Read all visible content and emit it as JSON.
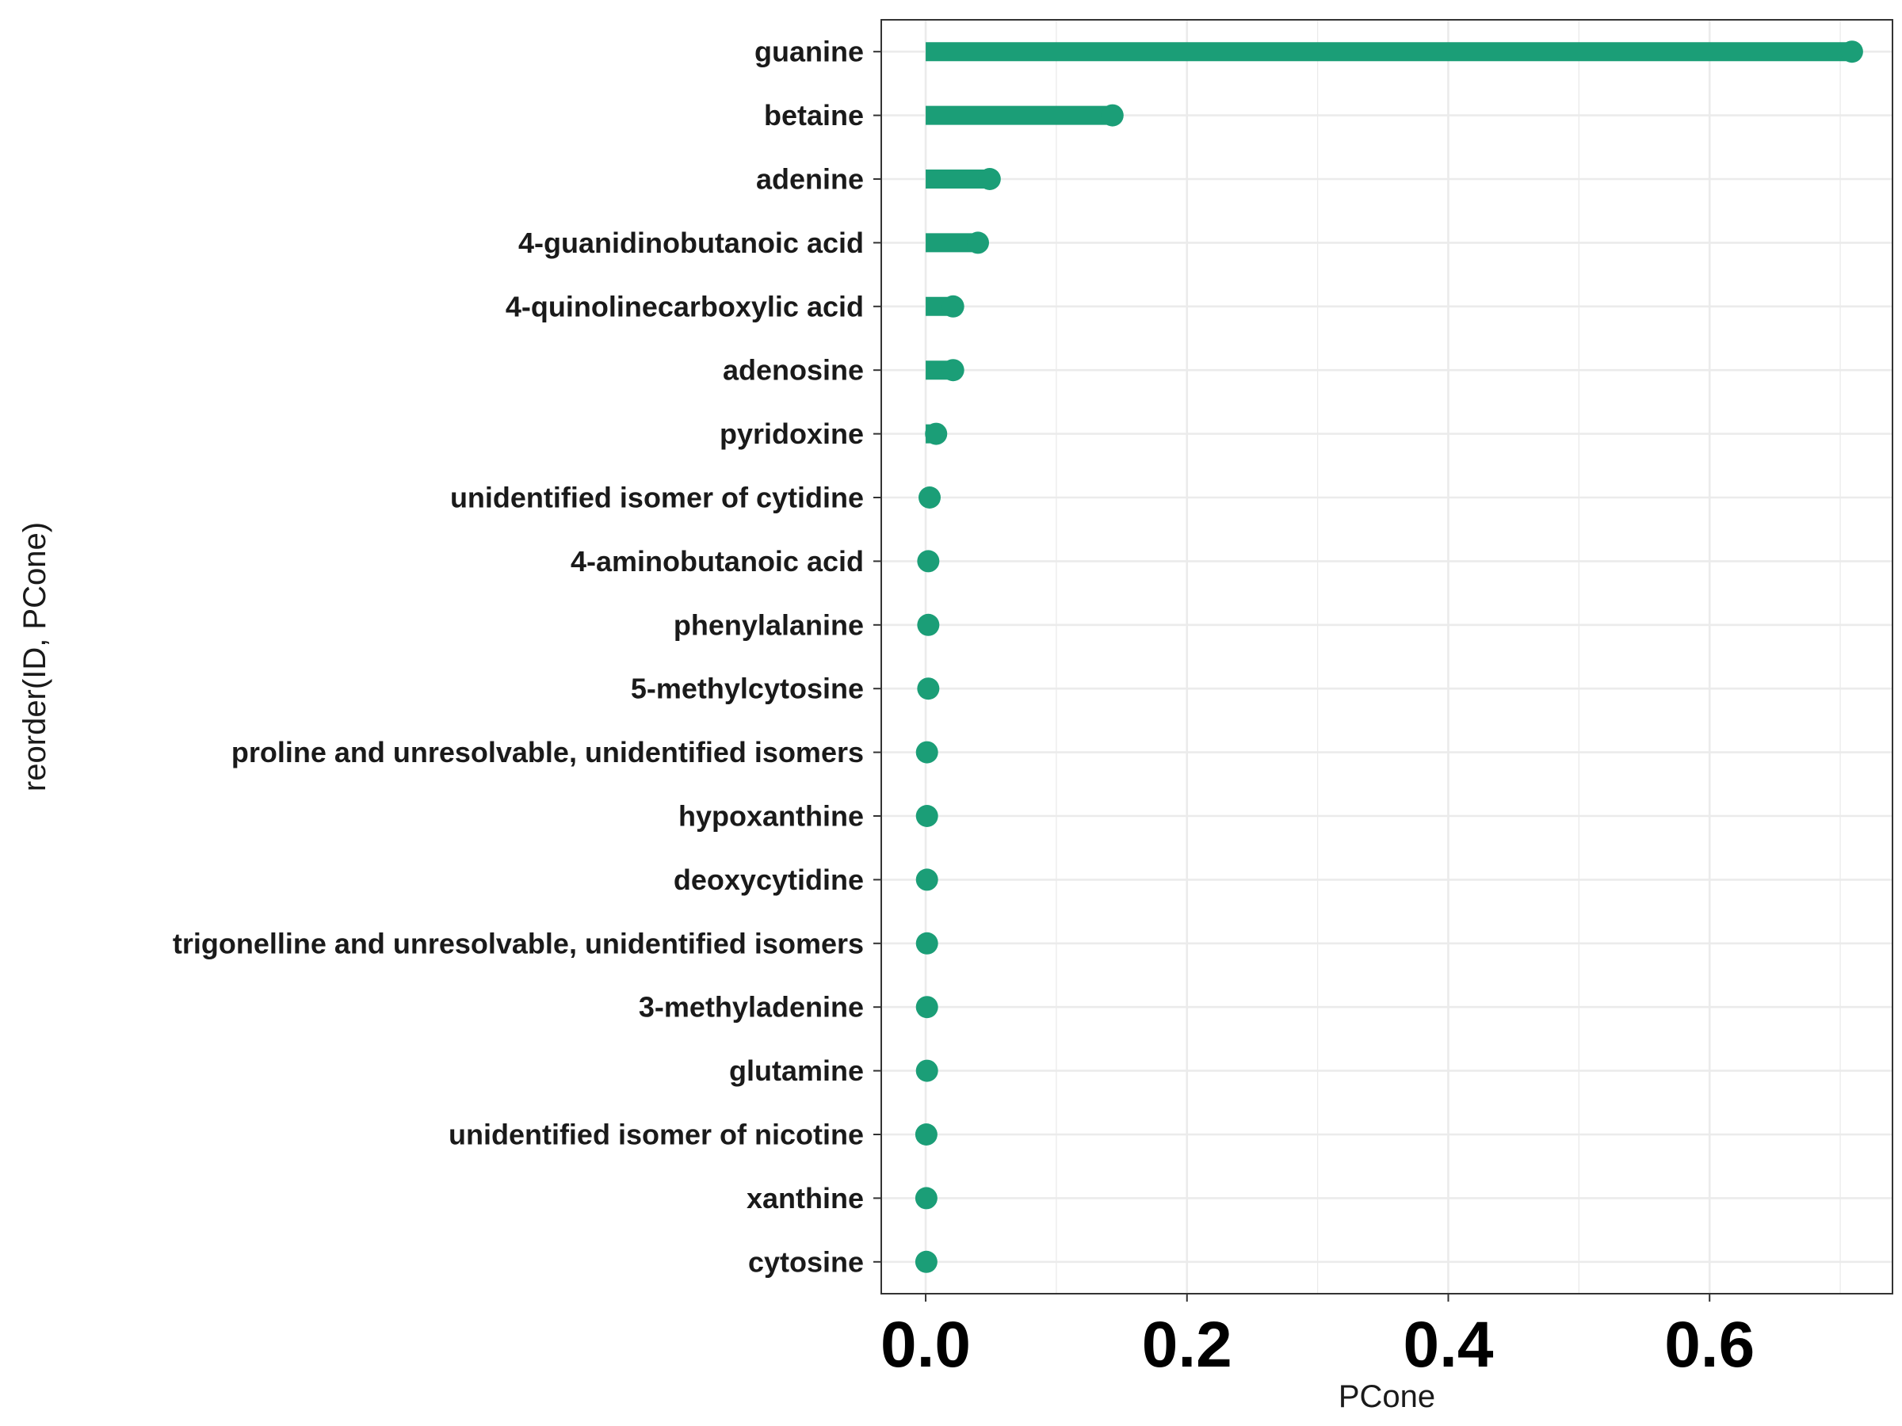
{
  "chart_data": {
    "type": "lollipop",
    "categories": [
      "guanine",
      "betaine",
      "adenine",
      "4-guanidinobutanoic acid",
      "4-quinolinecarboxylic acid",
      "adenosine",
      "pyridoxine",
      "unidentified isomer of cytidine",
      "4-aminobutanoic acid",
      "phenylalanine",
      "5-methylcytosine",
      "proline and unresolvable, unidentified isomers",
      "hypoxanthine",
      "deoxycytidine",
      "trigonelline and unresolvable, unidentified isomers",
      "3-methyladenine",
      "glutamine",
      "unidentified isomer of nicotine",
      "xanthine",
      "cytosine"
    ],
    "values": [
      0.709,
      0.143,
      0.049,
      0.04,
      0.021,
      0.021,
      0.008,
      0.003,
      0.002,
      0.002,
      0.002,
      0.001,
      0.001,
      0.001,
      0.001,
      0.001,
      0.001,
      0.0005,
      0.0005,
      0.0005
    ],
    "xlabel": "PCone",
    "ylabel": "reorder(ID, PCone)",
    "xlim": [
      -0.034,
      0.74
    ],
    "x_ticks": [
      0.0,
      0.2,
      0.4,
      0.6
    ],
    "x_tick_labels": [
      "0.0",
      "0.2",
      "0.4",
      "0.6"
    ],
    "grid": true,
    "legend": "none",
    "colors": {
      "mark": "#1b9e77",
      "grid": "#ebebeb",
      "panel_border": "#333333",
      "background": "#ffffff"
    }
  }
}
